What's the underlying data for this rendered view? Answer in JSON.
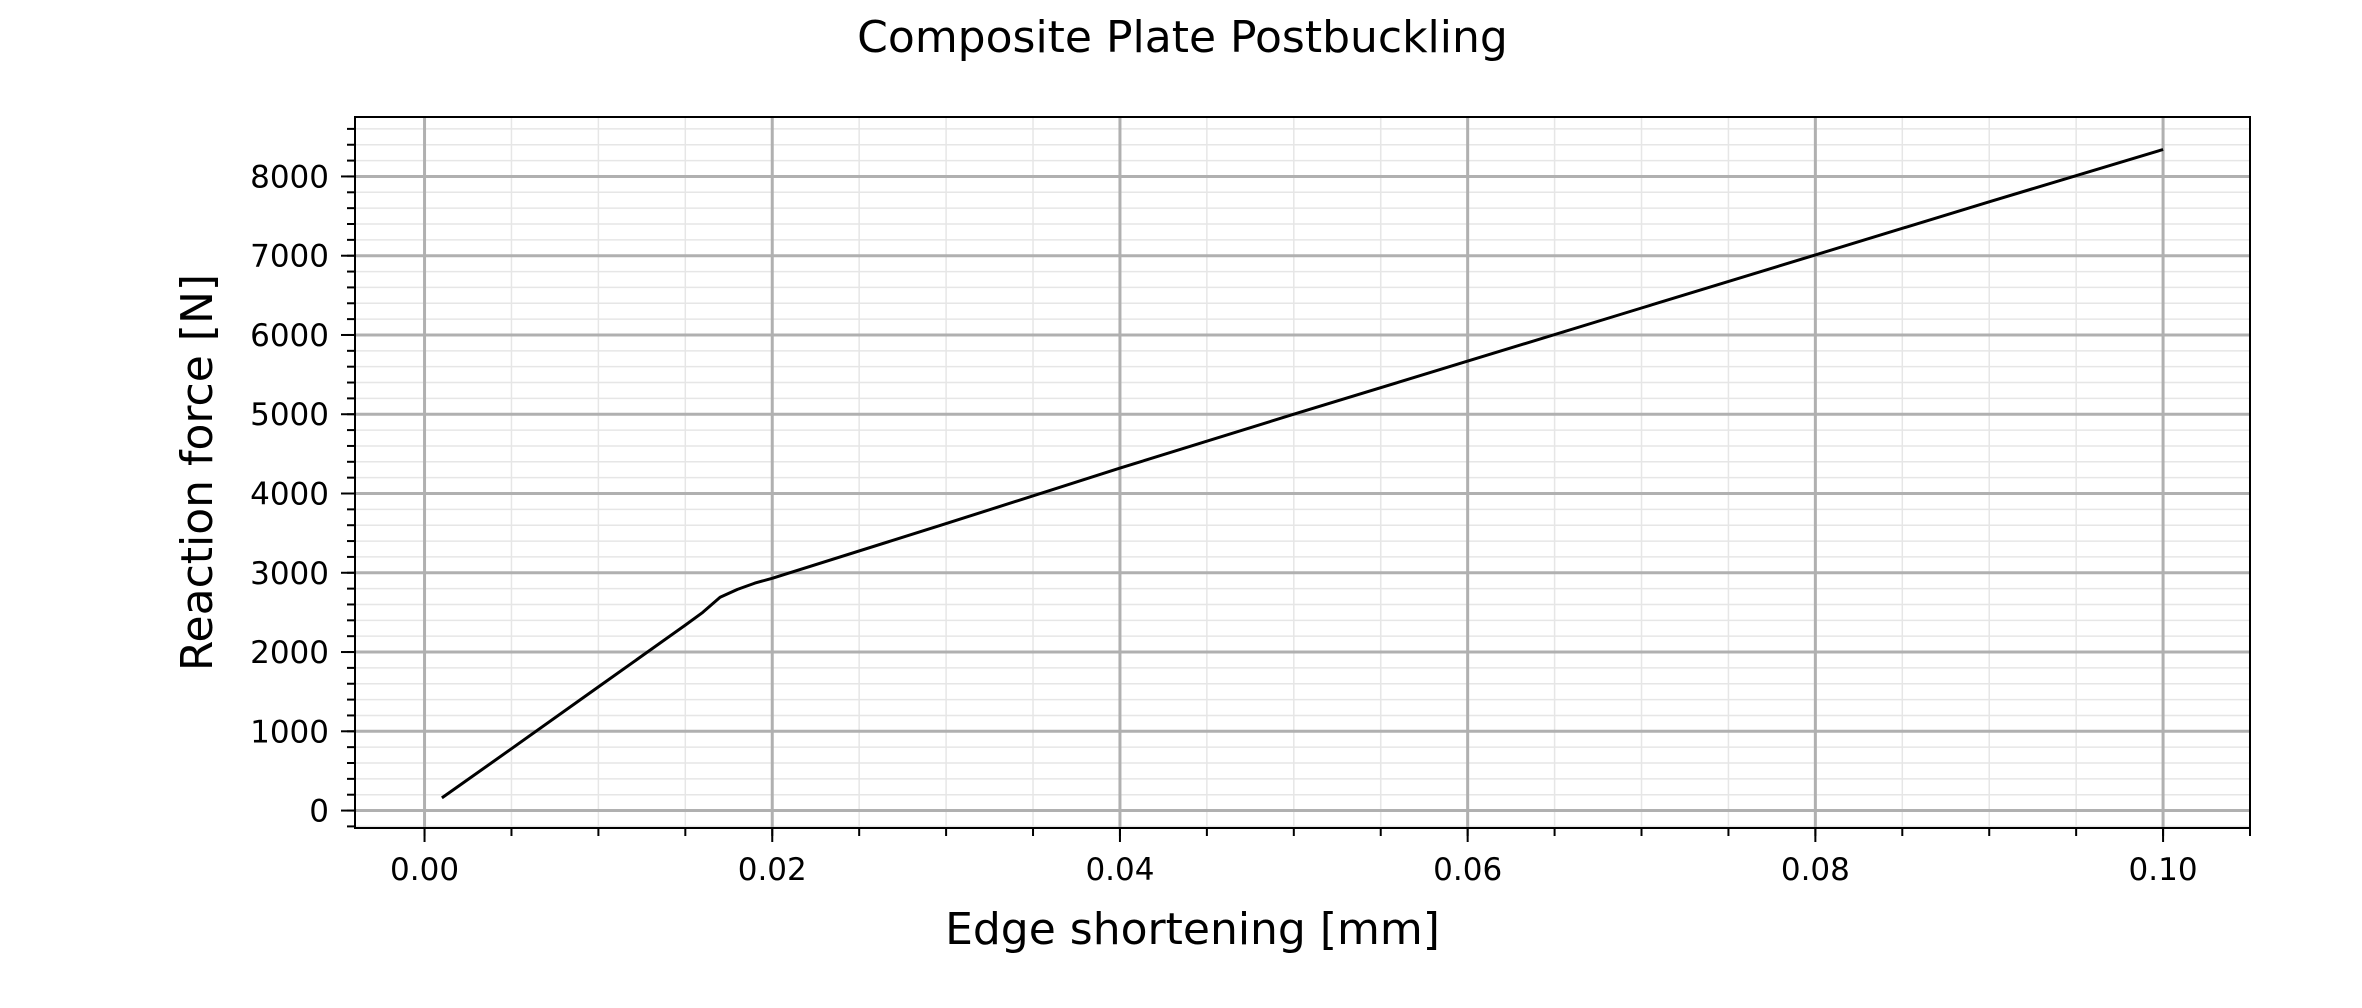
{
  "chart_data": {
    "type": "line",
    "title": "Composite Plate Postbuckling",
    "xlabel": "Edge shortening [mm]",
    "ylabel": "Reaction force [N]",
    "xlim": [
      -0.004,
      0.105
    ],
    "ylim": [
      -220,
      8750
    ],
    "x_ticks": [
      0.0,
      0.02,
      0.04,
      0.06,
      0.08,
      0.1
    ],
    "x_tick_labels": [
      "0.00",
      "0.02",
      "0.04",
      "0.06",
      "0.08",
      "0.10"
    ],
    "x_minor_step": 0.005,
    "y_ticks": [
      0,
      1000,
      2000,
      3000,
      4000,
      5000,
      6000,
      7000,
      8000
    ],
    "y_tick_labels": [
      "0",
      "1000",
      "2000",
      "3000",
      "4000",
      "5000",
      "6000",
      "7000",
      "8000"
    ],
    "y_minor_step": 200,
    "grid": "major and minor",
    "line_color": "#000000",
    "major_grid_color": "#b0b0b0",
    "minor_grid_color": "#e6e6e6",
    "series": [
      {
        "x": [
          0.001,
          0.005,
          0.01,
          0.015,
          0.016,
          0.017,
          0.018,
          0.019,
          0.02,
          0.03,
          0.04,
          0.05,
          0.06,
          0.07,
          0.08,
          0.09,
          0.1
        ],
        "y": [
          160,
          780,
          1560,
          2340,
          2500,
          2690,
          2790,
          2870,
          2930,
          3620,
          4320,
          5000,
          5670,
          6340,
          7010,
          7680,
          8340
        ]
      }
    ]
  }
}
